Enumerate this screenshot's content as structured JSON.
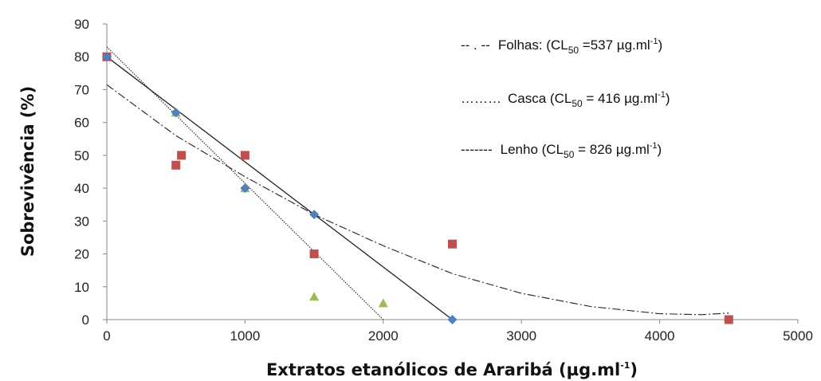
{
  "chart_data": {
    "type": "scatter",
    "xlabel": {
      "main": "Extratos etanólicos de Araribá (µg.ml",
      "sup": "-1",
      "close": ")"
    },
    "ylabel": "Sobrevivência (%)",
    "xlim": [
      0,
      5000
    ],
    "ylim": [
      0,
      90
    ],
    "xticks": [
      0,
      1000,
      2000,
      3000,
      4000,
      5000
    ],
    "yticks": [
      0,
      10,
      20,
      30,
      40,
      50,
      60,
      70,
      80,
      90
    ],
    "grid": false,
    "legend_position": "top-right",
    "series": [
      {
        "marker": "diamond",
        "color": "#4f81bd",
        "points": [
          [
            0,
            80
          ],
          [
            500,
            63
          ],
          [
            1000,
            40
          ],
          [
            1500,
            32
          ],
          [
            2500,
            0
          ]
        ]
      },
      {
        "marker": "square",
        "color": "#c0504d",
        "points": [
          [
            0,
            80
          ],
          [
            500,
            47
          ],
          [
            540,
            50
          ],
          [
            1000,
            50
          ],
          [
            1500,
            20
          ],
          [
            2500,
            23
          ],
          [
            4500,
            0
          ]
        ]
      },
      {
        "marker": "triangle",
        "color": "#9bbb59",
        "points": [
          [
            0,
            80
          ],
          [
            500,
            63
          ],
          [
            1000,
            40
          ],
          [
            1500,
            7
          ],
          [
            2000,
            5
          ]
        ]
      }
    ],
    "trendlines": [
      {
        "style": "dashdot",
        "points": [
          [
            0,
            71.5
          ],
          [
            500,
            56
          ],
          [
            1000,
            43.5
          ],
          [
            1500,
            32
          ],
          [
            2000,
            22.5
          ],
          [
            2500,
            14
          ],
          [
            3000,
            8
          ],
          [
            3500,
            4
          ],
          [
            4000,
            1.8
          ],
          [
            4300,
            1.5
          ],
          [
            4500,
            2
          ]
        ]
      },
      {
        "style": "dotted",
        "points": [
          [
            0,
            83
          ],
          [
            2000,
            0
          ]
        ]
      },
      {
        "style": "solid",
        "points": [
          [
            0,
            80
          ],
          [
            2500,
            0
          ]
        ]
      }
    ],
    "legend": [
      {
        "dash": "-- . --",
        "label": "Folhas: (CL",
        "sub": "50",
        "value": " =537 µg.ml",
        "sup": "-1",
        "close": ")"
      },
      {
        "dash": "………",
        "label": "Casca (CL",
        "sub": "50",
        "value": " = 416 µg.ml",
        "sup": "-1",
        "close": ")"
      },
      {
        "dash": "-------",
        "label": "Lenho (CL",
        "sub": "50",
        "value": " = 826 µg.ml",
        "sup": "-1",
        "close": ")"
      }
    ]
  }
}
